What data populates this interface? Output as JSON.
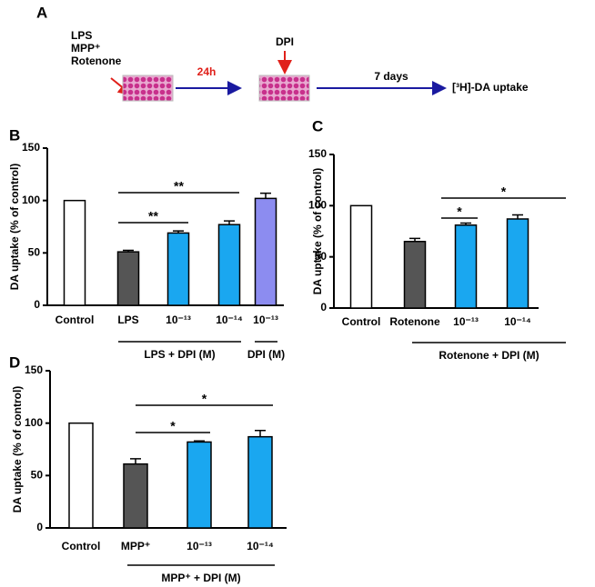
{
  "panel_a": {
    "label": "A",
    "treatments": [
      "LPS",
      "MPP⁺",
      "Rotenone"
    ],
    "interval": "24h",
    "drug": "DPI",
    "duration": "7 days",
    "readout": "[³H]-DA uptake"
  },
  "chart_data": [
    {
      "type": "bar",
      "panel": "B",
      "ylabel": "DA uptake (% of control)",
      "categories": [
        "Control",
        "LPS",
        "10⁻¹³",
        "10⁻¹⁴",
        "10⁻¹³"
      ],
      "values": [
        100,
        51,
        69,
        77,
        102
      ],
      "errors": [
        0,
        1.5,
        2,
        3.5,
        5
      ],
      "colors": [
        "#ffffff",
        "#555555",
        "#1aa7f0",
        "#1aa7f0",
        "#8c8cf0"
      ],
      "ylim": [
        0,
        150
      ],
      "yticks": [
        0,
        50,
        100,
        150
      ],
      "groups": [
        "LPS + DPI (M)",
        "DPI (M)"
      ],
      "significance": [
        "**",
        "**"
      ]
    },
    {
      "type": "bar",
      "panel": "C",
      "ylabel": "DA uptake (% of control)",
      "categories": [
        "Control",
        "Rotenone",
        "10⁻¹³",
        "10⁻¹⁴"
      ],
      "values": [
        100,
        65,
        81,
        87
      ],
      "errors": [
        0,
        3,
        2,
        4
      ],
      "colors": [
        "#ffffff",
        "#555555",
        "#1aa7f0",
        "#1aa7f0"
      ],
      "ylim": [
        0,
        150
      ],
      "yticks": [
        0,
        50,
        100,
        150
      ],
      "groups": [
        "Rotenone + DPI  (M)"
      ],
      "significance": [
        "*",
        "*"
      ]
    },
    {
      "type": "bar",
      "panel": "D",
      "ylabel": "DA uptake (% of control)",
      "categories": [
        "Control",
        "MPP⁺",
        "10⁻¹³",
        "10⁻¹⁴"
      ],
      "values": [
        100,
        61,
        82,
        87
      ],
      "errors": [
        0,
        5,
        1,
        6
      ],
      "colors": [
        "#ffffff",
        "#555555",
        "#1aa7f0",
        "#1aa7f0"
      ],
      "ylim": [
        0,
        150
      ],
      "yticks": [
        0,
        50,
        100,
        150
      ],
      "groups": [
        "MPP⁺ + DPI (M)"
      ],
      "significance": [
        "*",
        "*"
      ]
    }
  ]
}
